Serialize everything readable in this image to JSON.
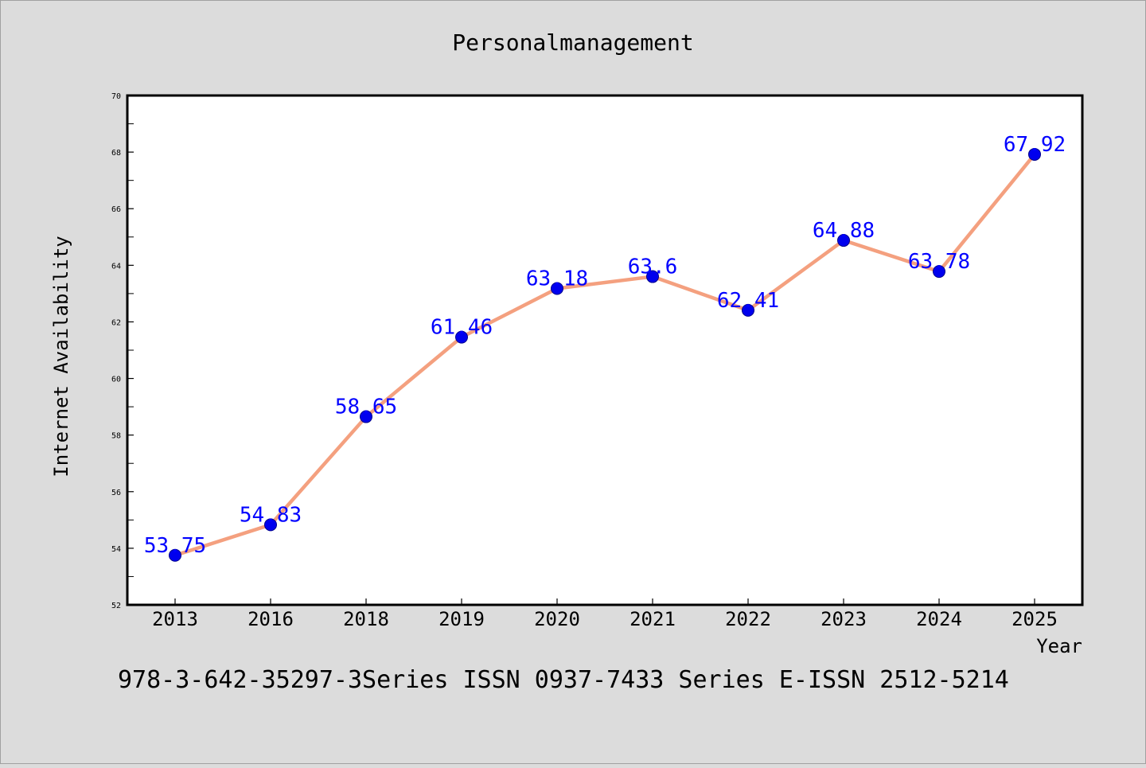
{
  "chart_data": {
    "type": "line",
    "title": "Personalmanagement",
    "xlabel": "Year",
    "ylabel": "Internet Availability",
    "categories": [
      "2013",
      "2016",
      "2018",
      "2019",
      "2020",
      "2021",
      "2022",
      "2023",
      "2024",
      "2025"
    ],
    "series": [
      {
        "values": [
          53.75,
          54.83,
          58.65,
          61.46,
          63.18,
          63.6,
          62.41,
          64.88,
          63.78,
          67.92
        ],
        "labels": [
          "53.75",
          "54.83",
          "58.65",
          "61.46",
          "63.18",
          "63.6",
          "62.41",
          "64.88",
          "63.78",
          "67.92"
        ]
      }
    ],
    "ylim": [
      52,
      70
    ],
    "yticks": [
      "52",
      "54",
      "56",
      "58",
      "60",
      "62",
      "64",
      "66",
      "68",
      "70"
    ],
    "grid": false,
    "colors": {
      "line": "#f4a07f",
      "marker": "#0000ee",
      "data_label": "#0000ff",
      "plot_bg": "#ffffff",
      "page_bg": "#dcdcdc"
    }
  },
  "footer": {
    "text": "978-3-642-35297-3Series ISSN 0937-7433 Series E-ISSN 2512-5214"
  }
}
